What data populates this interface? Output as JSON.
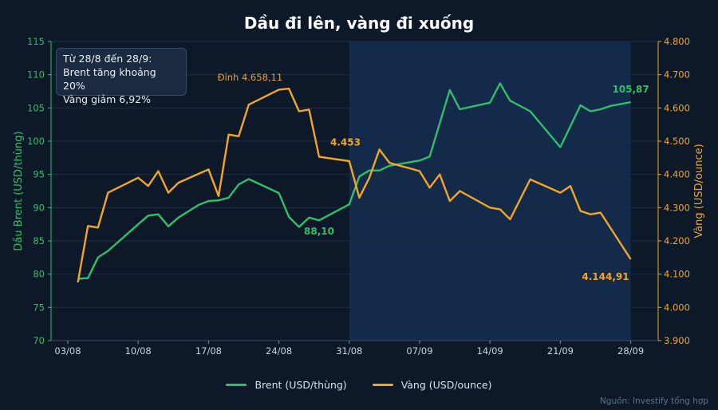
{
  "chart_data": {
    "type": "line",
    "title": "Dầu đi lên, vàng đi xuống",
    "xticks": [
      "03/08",
      "10/08",
      "17/08",
      "24/08",
      "31/08",
      "07/09",
      "14/09",
      "21/09",
      "28/09"
    ],
    "left_axis": {
      "label": "Dầu Brent (USD/thùng)",
      "ticks": [
        "70",
        "75",
        "80",
        "85",
        "90",
        "95",
        "100",
        "105",
        "110",
        "115"
      ],
      "ylim": [
        70,
        115
      ]
    },
    "right_axis": {
      "label": "Vàng (USD/ounce)",
      "ticks": [
        "3.900",
        "4.000",
        "4.100",
        "4.200",
        "4.300",
        "4.400",
        "4.500",
        "4.600",
        "4.700",
        "4.800"
      ],
      "ylim": [
        3900,
        4800
      ]
    },
    "highlight_region": {
      "from_day": 28,
      "to_day": 56
    },
    "series": [
      {
        "name": "Brent (USD/thùng)",
        "axis": "left",
        "color": "#2fbf6a",
        "x": [
          1,
          2,
          3,
          4,
          7,
          8,
          9,
          10,
          11,
          13,
          14,
          15,
          16,
          17,
          18,
          21,
          22,
          23,
          24,
          25,
          28,
          29,
          30,
          31,
          32,
          35,
          36,
          37,
          38,
          39,
          42,
          43,
          44,
          46,
          49,
          51,
          52,
          53,
          54,
          56
        ],
        "values": [
          79.3,
          79.4,
          82.5,
          83.5,
          87.5,
          88.8,
          89.0,
          87.2,
          88.5,
          90.4,
          91.0,
          91.1,
          91.5,
          93.5,
          94.3,
          92.2,
          88.6,
          87.1,
          88.5,
          88.1,
          90.5,
          94.7,
          95.6,
          95.6,
          96.3,
          97.1,
          97.7,
          102.7,
          107.7,
          104.8,
          105.8,
          108.7,
          106.1,
          104.5,
          99.1,
          105.4,
          104.5,
          104.8,
          105.3,
          105.87
        ]
      },
      {
        "name": "Vàng (USD/ounce)",
        "axis": "right",
        "color": "#f2a623",
        "x": [
          1,
          2,
          3,
          4,
          7,
          8,
          9,
          10,
          11,
          14,
          15,
          16,
          17,
          18,
          21,
          22,
          23,
          24,
          25,
          28,
          29,
          30,
          31,
          32,
          35,
          36,
          37,
          38,
          39,
          42,
          43,
          44,
          46,
          49,
          50,
          51,
          52,
          53,
          56
        ],
        "values": [
          4075,
          4245,
          4240,
          4345,
          4390,
          4365,
          4410,
          4345,
          4375,
          4415,
          4335,
          4520,
          4515,
          4610,
          4655,
          4658.11,
          4590,
          4595,
          4453,
          4440,
          4330,
          4390,
          4475,
          4435,
          4410,
          4360,
          4400,
          4320,
          4350,
          4300,
          4295,
          4265,
          4385,
          4345,
          4365,
          4290,
          4280,
          4285,
          4144.91
        ]
      }
    ],
    "annotations": [
      {
        "text": "Đỉnh 4.658,11",
        "series": 1,
        "index": 15,
        "color": "#e6a233"
      },
      {
        "text": "88,10",
        "series": 0,
        "index": 19,
        "color": "#2fbf6a"
      },
      {
        "text": "4.453",
        "series": 1,
        "index": 18,
        "color": "#f2a623"
      },
      {
        "text": "105,87",
        "series": 0,
        "index": 39,
        "color": "#2fbf6a"
      },
      {
        "text": "4.144,91",
        "series": 1,
        "index": 38,
        "color": "#f2a623"
      }
    ]
  },
  "note": {
    "line1": "Từ 28/8 đến 28/9:",
    "line2": "Brent tăng khoảng 20%",
    "line3": "Vàng giảm 6,92%"
  },
  "legend": {
    "brent": "Brent (USD/thùng)",
    "gold": "Vàng (USD/ounce)"
  },
  "source": "Nguồn: Investify tổng hợp",
  "colors": {
    "background": "#0d1929",
    "highlight": "#132a4a",
    "brent": "#2fbf6a",
    "gold": "#f2a623",
    "grid": "#1e2d42"
  }
}
